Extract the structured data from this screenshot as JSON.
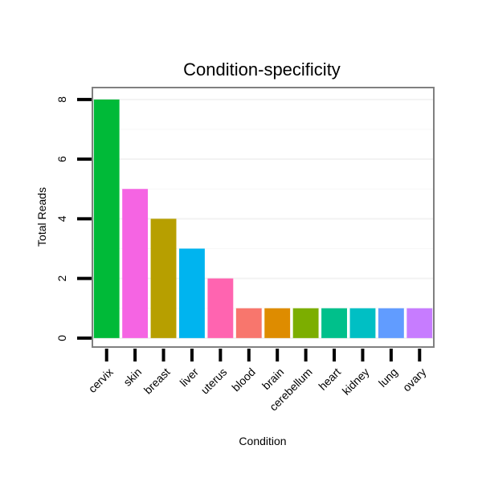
{
  "chart_data": {
    "type": "bar",
    "title": "Condition-specificity",
    "xlabel": "Condition",
    "ylabel": "Total Reads",
    "categories": [
      "cervix",
      "skin",
      "breast",
      "liver",
      "uterus",
      "blood",
      "brain",
      "cerebellum",
      "heart",
      "kidney",
      "lung",
      "ovary"
    ],
    "values": [
      8,
      5,
      4,
      3,
      2,
      1,
      1,
      1,
      1,
      1,
      1,
      1
    ],
    "colors": [
      "#00BA38",
      "#F564E3",
      "#B79F00",
      "#00B4EF",
      "#FF64B0",
      "#F8766D",
      "#DE8C00",
      "#7CAE00",
      "#00C08B",
      "#00BFC4",
      "#619CFF",
      "#C77CFF"
    ],
    "ylim": [
      -0.3,
      8.4
    ],
    "yticks": [
      0,
      2,
      4,
      6,
      8
    ],
    "ytick_labels": [
      "0",
      "2",
      "4",
      "6",
      "8"
    ],
    "grid": true,
    "legend": "none",
    "panel_border_color": "#808080"
  }
}
